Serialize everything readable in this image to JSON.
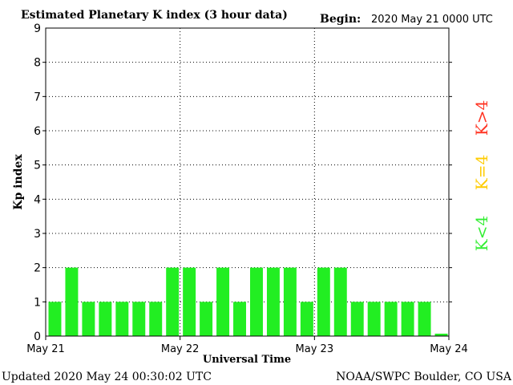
{
  "chart_data": {
    "type": "bar",
    "title": "Estimated Planetary K index (3 hour data)",
    "begin_label": "Begin:",
    "begin_value": "2020 May 21 0000 UTC",
    "xlabel": "Universal Time",
    "ylabel": "Kp index",
    "ylim": [
      0,
      9
    ],
    "yticks": [
      "0",
      "1",
      "2",
      "3",
      "4",
      "5",
      "6",
      "7",
      "8",
      "9"
    ],
    "xticks": [
      "May 21",
      "May 22",
      "May 23",
      "May 24"
    ],
    "grid": "dotted",
    "bar_color": "#22ee22",
    "values": [
      1,
      2,
      1,
      1,
      1,
      1,
      1,
      2,
      2,
      1,
      2,
      1,
      2,
      2,
      2,
      1,
      2,
      2,
      1,
      1,
      1,
      1,
      1,
      0.07
    ]
  },
  "legend": [
    {
      "label": "K<4",
      "color": "#33ee33"
    },
    {
      "label": "K=4",
      "color": "#ffcc00"
    },
    {
      "label": "K>4",
      "color": "#ff3322"
    }
  ],
  "footer": {
    "updated": "Updated 2020 May 24 00:30:02 UTC",
    "source": "NOAA/SWPC Boulder, CO USA"
  }
}
